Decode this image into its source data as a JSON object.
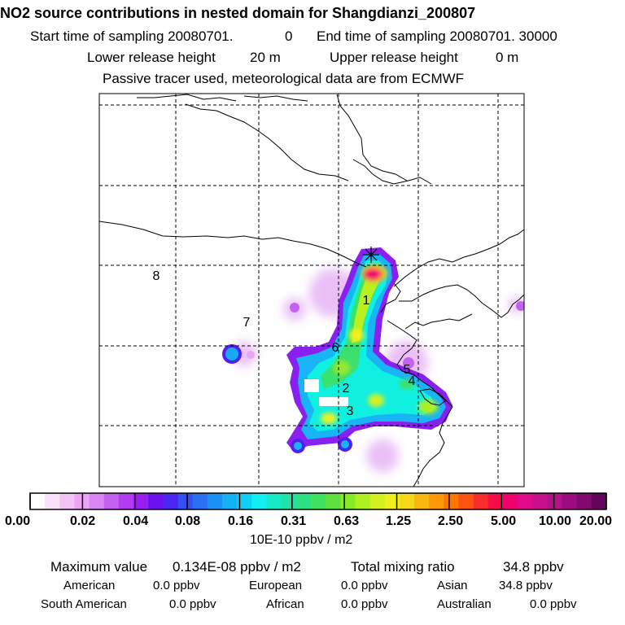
{
  "header": {
    "title": "NO2 source contributions in nested domain for Shangdianzi_200807",
    "start_label": "Start time of sampling 20080701.",
    "start_value": "0",
    "end_label": "End time of sampling 20080701. 30000",
    "lower_label": "Lower release height",
    "lower_value": "20 m",
    "upper_label": "Upper release height",
    "upper_value": "0 m",
    "tracer_note": "Passive tracer used, meteorological data are from ECMWF"
  },
  "map": {
    "region_labels": [
      "1",
      "2",
      "3",
      "4",
      "5",
      "6",
      "7",
      "8"
    ],
    "receptor_marker": "star-icon"
  },
  "colorbar": {
    "tick_labels": [
      "0.00",
      "0.02",
      "0.04",
      "0.08",
      "0.16",
      "0.31",
      "0.63",
      "1.25",
      "2.50",
      "5.00",
      "10.00",
      "20.00"
    ],
    "unit": "10E-10 ppbv / m2",
    "colors": [
      "#ffffff",
      "#fbe0fb",
      "#f3c3f6",
      "#eaa5f3",
      "#d887f2",
      "#c561f0",
      "#b23cf0",
      "#9a1ef0",
      "#6c10f0",
      "#4a26f0",
      "#3450f0",
      "#2a70f0",
      "#1a90f4",
      "#14b0f6",
      "#0ed0f4",
      "#10f0f0",
      "#14e8c8",
      "#20e2a6",
      "#2ee084",
      "#40e060",
      "#5ee040",
      "#86e828",
      "#aef020",
      "#d2f020",
      "#f0f020",
      "#f6d818",
      "#f8b810",
      "#fa9808",
      "#fc7800",
      "#fc5410",
      "#fa2c2c",
      "#f60c48",
      "#f0006c",
      "#e00a8a",
      "#c8108c",
      "#b4128c",
      "#9a0c80",
      "#800870",
      "#62045c"
    ]
  },
  "stats": {
    "max_label": "Maximum value",
    "max_value": "0.134E-08 ppbv / m2",
    "total_label": "Total mixing ratio",
    "total_value": "34.8 ppbv",
    "regions": [
      {
        "name": "American",
        "value": "0.0 ppbv"
      },
      {
        "name": "European",
        "value": "0.0 ppbv"
      },
      {
        "name": "Asian",
        "value": "34.8 ppbv"
      },
      {
        "name": "South American",
        "value": "0.0 ppbv"
      },
      {
        "name": "African",
        "value": "0.0 ppbv"
      },
      {
        "name": "Australian",
        "value": "0.0 ppbv"
      }
    ]
  }
}
